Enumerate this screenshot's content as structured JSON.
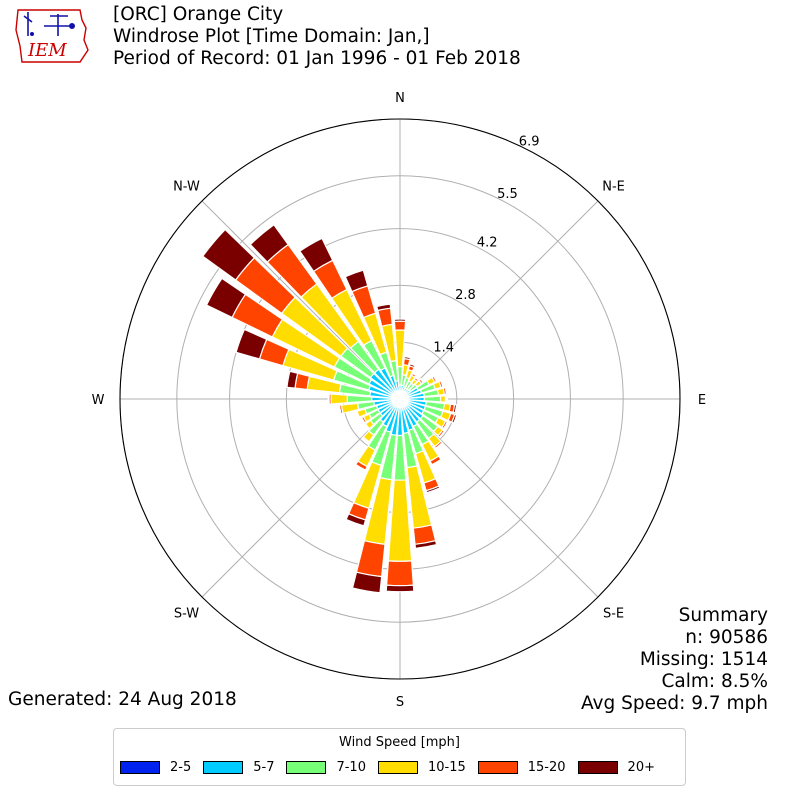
{
  "header": {
    "line1": "[ORC] Orange City",
    "line2": "Windrose Plot [Time Domain: Jan,]",
    "line3": "Period of Record: 01 Jan 1996 - 01 Feb 2018"
  },
  "logo": {
    "text": "IEM",
    "color": "#cc0000"
  },
  "summary": {
    "heading": "Summary",
    "n": "n: 90586",
    "missing": "Missing: 1514",
    "calm": "Calm: 8.5%",
    "avg_speed": "Avg Speed: 9.7 mph"
  },
  "generated": "Generated: 24 Aug 2018",
  "legend": {
    "title": "Wind Speed [mph]",
    "items": [
      {
        "label": "2-5",
        "color": "#0022ee"
      },
      {
        "label": "5-7",
        "color": "#00ccff"
      },
      {
        "label": "7-10",
        "color": "#77ff77"
      },
      {
        "label": "10-15",
        "color": "#ffdd00"
      },
      {
        "label": "15-20",
        "color": "#ff4400"
      },
      {
        "label": "20+",
        "color": "#7a0000"
      }
    ]
  },
  "chart_data": {
    "type": "windrose",
    "directions": [
      "N",
      "N-E",
      "E",
      "S-E",
      "S",
      "S-W",
      "W",
      "N-W"
    ],
    "radial_ticks": [
      "1.4",
      "2.8",
      "4.2",
      "5.5",
      "6.9"
    ],
    "radial_max": 6.9,
    "unit": "%",
    "sector_width_deg": 10,
    "bins": [
      "2-5",
      "5-7",
      "7-10",
      "10-15",
      "15-20",
      "20+"
    ],
    "sectors": [
      {
        "dir_deg": 0,
        "cumulative": [
          0.13,
          0.34,
          0.8,
          1.7,
          1.92,
          1.97
        ]
      },
      {
        "dir_deg": 10,
        "cumulative": [
          0.13,
          0.34,
          0.6,
          0.85,
          1.0,
          1.05
        ]
      },
      {
        "dir_deg": 20,
        "cumulative": [
          0.12,
          0.32,
          0.55,
          0.75,
          0.85,
          0.9
        ]
      },
      {
        "dir_deg": 30,
        "cumulative": [
          0.12,
          0.3,
          0.5,
          0.65,
          0.7,
          0.72
        ]
      },
      {
        "dir_deg": 40,
        "cumulative": [
          0.12,
          0.3,
          0.48,
          0.6,
          0.65,
          0.68
        ]
      },
      {
        "dir_deg": 50,
        "cumulative": [
          0.12,
          0.32,
          0.52,
          0.65,
          0.7,
          0.72
        ]
      },
      {
        "dir_deg": 60,
        "cumulative": [
          0.14,
          0.5,
          0.8,
          0.95,
          1.0,
          1.02
        ]
      },
      {
        "dir_deg": 70,
        "cumulative": [
          0.14,
          0.55,
          0.9,
          1.05,
          1.1,
          1.12
        ]
      },
      {
        "dir_deg": 80,
        "cumulative": [
          0.15,
          0.6,
          0.95,
          1.1,
          1.15,
          1.17
        ]
      },
      {
        "dir_deg": 90,
        "cumulative": [
          0.15,
          0.6,
          1.0,
          1.12,
          1.15,
          1.17
        ]
      },
      {
        "dir_deg": 100,
        "cumulative": [
          0.15,
          0.65,
          1.1,
          1.25,
          1.35,
          1.4
        ]
      },
      {
        "dir_deg": 110,
        "cumulative": [
          0.15,
          0.65,
          1.1,
          1.3,
          1.4,
          1.45
        ]
      },
      {
        "dir_deg": 120,
        "cumulative": [
          0.15,
          0.65,
          1.05,
          1.25,
          1.3,
          1.32
        ]
      },
      {
        "dir_deg": 130,
        "cumulative": [
          0.15,
          0.7,
          1.15,
          1.3,
          1.35,
          1.37
        ]
      },
      {
        "dir_deg": 140,
        "cumulative": [
          0.15,
          0.7,
          1.2,
          1.45,
          1.5,
          1.52
        ]
      },
      {
        "dir_deg": 150,
        "cumulative": [
          0.18,
          0.75,
          1.25,
          1.7,
          1.8,
          1.83
        ]
      },
      {
        "dir_deg": 160,
        "cumulative": [
          0.18,
          0.8,
          1.4,
          2.15,
          2.35,
          2.4
        ]
      },
      {
        "dir_deg": 170,
        "cumulative": [
          0.18,
          0.85,
          1.7,
          3.2,
          3.6,
          3.7
        ]
      },
      {
        "dir_deg": 180,
        "cumulative": [
          0.18,
          0.9,
          2.0,
          4.0,
          4.6,
          4.75
        ]
      },
      {
        "dir_deg": 190,
        "cumulative": [
          0.18,
          0.9,
          2.0,
          3.6,
          4.4,
          4.8
        ]
      },
      {
        "dir_deg": 200,
        "cumulative": [
          0.18,
          0.85,
          1.7,
          2.8,
          3.1,
          3.25
        ]
      },
      {
        "dir_deg": 210,
        "cumulative": [
          0.17,
          0.75,
          1.4,
          1.85,
          1.95,
          1.98
        ]
      },
      {
        "dir_deg": 220,
        "cumulative": [
          0.17,
          0.7,
          1.1,
          1.3,
          1.33,
          1.35
        ]
      },
      {
        "dir_deg": 230,
        "cumulative": [
          0.16,
          0.6,
          0.9,
          1.05,
          1.08,
          1.1
        ]
      },
      {
        "dir_deg": 240,
        "cumulative": [
          0.16,
          0.6,
          0.85,
          1.0,
          1.05,
          1.07
        ]
      },
      {
        "dir_deg": 250,
        "cumulative": [
          0.16,
          0.6,
          0.9,
          1.1,
          1.13,
          1.15
        ]
      },
      {
        "dir_deg": 260,
        "cumulative": [
          0.17,
          0.65,
          1.05,
          1.45,
          1.5,
          1.52
        ]
      },
      {
        "dir_deg": 270,
        "cumulative": [
          0.18,
          0.7,
          1.3,
          1.7,
          1.75,
          1.77
        ]
      },
      {
        "dir_deg": 280,
        "cumulative": [
          0.18,
          0.75,
          1.5,
          2.3,
          2.6,
          2.8
        ]
      },
      {
        "dir_deg": 290,
        "cumulative": [
          0.18,
          0.8,
          1.7,
          3.0,
          3.6,
          4.2
        ]
      },
      {
        "dir_deg": 300,
        "cumulative": [
          0.2,
          0.85,
          1.8,
          3.5,
          4.6,
          5.3
        ]
      },
      {
        "dir_deg": 310,
        "cumulative": [
          0.2,
          0.9,
          1.8,
          3.6,
          5.0,
          6.0
        ]
      },
      {
        "dir_deg": 320,
        "cumulative": [
          0.2,
          0.9,
          1.75,
          3.5,
          4.7,
          5.3
        ]
      },
      {
        "dir_deg": 330,
        "cumulative": [
          0.18,
          0.85,
          1.6,
          3.0,
          3.8,
          4.4
        ]
      },
      {
        "dir_deg": 340,
        "cumulative": [
          0.16,
          0.6,
          1.2,
          2.2,
          2.9,
          3.3
        ]
      },
      {
        "dir_deg": 350,
        "cumulative": [
          0.14,
          0.45,
          0.95,
          1.85,
          2.25,
          2.35
        ]
      }
    ]
  }
}
